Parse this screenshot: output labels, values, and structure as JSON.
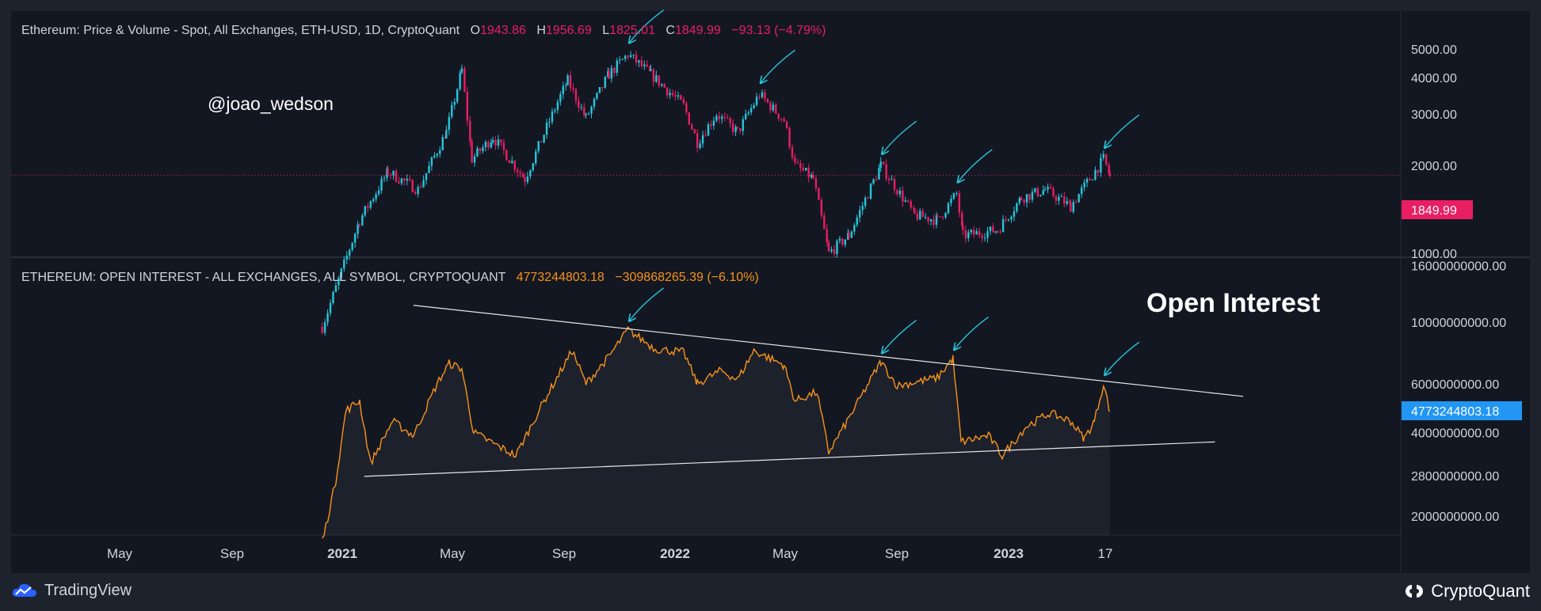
{
  "colors": {
    "background": "#131722",
    "frame": "#1e222d",
    "up": "#26c6da",
    "down": "#e91e63",
    "oi_line": "#f7931a",
    "arrow": "#26c6da",
    "price_badge": "#e91e63",
    "oi_badge": "#2196f3",
    "axis_text": "#d1d4dc"
  },
  "price_pane": {
    "legend": {
      "title": "Ethereum: Price & Volume - Spot, All Exchanges, ETH-USD, 1D, CryptoQuant",
      "o_label": "O",
      "o_value": "1943.86",
      "h_label": "H",
      "h_value": "1956.69",
      "l_label": "L",
      "l_value": "1825.01",
      "c_label": "C",
      "c_value": "1849.99",
      "change": "−93.13 (−4.79%)"
    },
    "watermark": "@joao_wedson",
    "last_price_label": "1849.99"
  },
  "oi_pane": {
    "legend": {
      "title": "ETHEREUM: OPEN INTEREST - ALL EXCHANGES, ALL SYMBOL, CRYPTOQUANT",
      "value": "4773244803.18",
      "change": "−309868265.39 (−6.10%)"
    },
    "annotation": "Open Interest",
    "last_value_label": "4773244803.18"
  },
  "footer": {
    "tradingview": "TradingView",
    "cryptoquant": "CryptoQuant",
    "tv_icon": "tradingview-cloud-icon",
    "cq_icon": "cryptoquant-logo-icon"
  },
  "chart_data": [
    {
      "type": "candlestick",
      "scale": "log",
      "ylim": [
        1000,
        5500
      ],
      "y_ticks": [
        "1000.00",
        "2000.00",
        "3000.00",
        "4000.00",
        "5000.00"
      ],
      "x_ticks": [
        "May",
        "Sep",
        "2021",
        "May",
        "Sep",
        "2022",
        "May",
        "Sep",
        "2023",
        "17"
      ],
      "bold_x_ticks": [
        "2021",
        "2022",
        "2023"
      ],
      "last_close": 1849.99,
      "anchors": [
        {
          "x": "2020-12-10",
          "y": 560
        },
        {
          "x": "2021-01-20",
          "y": 1300
        },
        {
          "x": "2021-02-20",
          "y": 1900
        },
        {
          "x": "2021-03-25",
          "y": 1650
        },
        {
          "x": "2021-04-25",
          "y": 2600
        },
        {
          "x": "2021-05-12",
          "y": 4250
        },
        {
          "x": "2021-05-23",
          "y": 2100
        },
        {
          "x": "2021-06-15",
          "y": 2500
        },
        {
          "x": "2021-07-20",
          "y": 1800
        },
        {
          "x": "2021-08-25",
          "y": 3300
        },
        {
          "x": "2021-09-05",
          "y": 3900
        },
        {
          "x": "2021-09-25",
          "y": 2900
        },
        {
          "x": "2021-10-20",
          "y": 4100
        },
        {
          "x": "2021-11-10",
          "y": 4800
        },
        {
          "x": "2021-12-05",
          "y": 4100
        },
        {
          "x": "2022-01-10",
          "y": 3200
        },
        {
          "x": "2022-01-25",
          "y": 2400
        },
        {
          "x": "2022-02-15",
          "y": 3000
        },
        {
          "x": "2022-03-10",
          "y": 2600
        },
        {
          "x": "2022-04-03",
          "y": 3500
        },
        {
          "x": "2022-04-30",
          "y": 2850
        },
        {
          "x": "2022-05-12",
          "y": 2000
        },
        {
          "x": "2022-06-01",
          "y": 1800
        },
        {
          "x": "2022-06-18",
          "y": 1000
        },
        {
          "x": "2022-07-10",
          "y": 1150
        },
        {
          "x": "2022-08-14",
          "y": 2000
        },
        {
          "x": "2022-09-20",
          "y": 1350
        },
        {
          "x": "2022-10-15",
          "y": 1300
        },
        {
          "x": "2022-11-05",
          "y": 1600
        },
        {
          "x": "2022-11-12",
          "y": 1150
        },
        {
          "x": "2022-12-20",
          "y": 1200
        },
        {
          "x": "2023-01-15",
          "y": 1550
        },
        {
          "x": "2023-02-10",
          "y": 1650
        },
        {
          "x": "2023-03-10",
          "y": 1450
        },
        {
          "x": "2023-04-15",
          "y": 2100
        },
        {
          "x": "2023-04-22",
          "y": 1849.99
        }
      ],
      "arrows_at": [
        "2021-11-10",
        "2022-04-03",
        "2022-08-14",
        "2022-11-05",
        "2023-04-15"
      ]
    },
    {
      "type": "line",
      "ylim": [
        1800000000,
        16000000000
      ],
      "y_ticks": [
        "2000000000.00",
        "2800000000.00",
        "4000000000.00",
        "6000000000.00",
        "10000000000.00",
        "16000000000.00"
      ],
      "last_value": 4773244803.18,
      "anchors": [
        {
          "x": "2020-12-10",
          "y": 1600000000
        },
        {
          "x": "2020-12-25",
          "y": 2700000000
        },
        {
          "x": "2021-01-05",
          "y": 4800000000
        },
        {
          "x": "2021-01-20",
          "y": 5200000000
        },
        {
          "x": "2021-02-01",
          "y": 3100000000
        },
        {
          "x": "2021-02-25",
          "y": 4400000000
        },
        {
          "x": "2021-03-20",
          "y": 3900000000
        },
        {
          "x": "2021-04-15",
          "y": 6000000000
        },
        {
          "x": "2021-04-28",
          "y": 7100000000
        },
        {
          "x": "2021-05-12",
          "y": 6800000000
        },
        {
          "x": "2021-05-25",
          "y": 4000000000
        },
        {
          "x": "2021-07-10",
          "y": 3300000000
        },
        {
          "x": "2021-08-10",
          "y": 5200000000
        },
        {
          "x": "2021-09-01",
          "y": 7000000000
        },
        {
          "x": "2021-09-10",
          "y": 7900000000
        },
        {
          "x": "2021-09-25",
          "y": 6000000000
        },
        {
          "x": "2021-10-20",
          "y": 7500000000
        },
        {
          "x": "2021-11-10",
          "y": 9400000000
        },
        {
          "x": "2021-12-10",
          "y": 8000000000
        },
        {
          "x": "2022-01-10",
          "y": 7800000000
        },
        {
          "x": "2022-01-25",
          "y": 6000000000
        },
        {
          "x": "2022-02-20",
          "y": 6700000000
        },
        {
          "x": "2022-03-10",
          "y": 6200000000
        },
        {
          "x": "2022-03-28",
          "y": 7900000000
        },
        {
          "x": "2022-04-30",
          "y": 7000000000
        },
        {
          "x": "2022-05-12",
          "y": 5200000000
        },
        {
          "x": "2022-06-05",
          "y": 5600000000
        },
        {
          "x": "2022-06-18",
          "y": 3400000000
        },
        {
          "x": "2022-07-10",
          "y": 4500000000
        },
        {
          "x": "2022-08-14",
          "y": 7200000000
        },
        {
          "x": "2022-09-01",
          "y": 5900000000
        },
        {
          "x": "2022-10-15",
          "y": 6300000000
        },
        {
          "x": "2022-11-01",
          "y": 7400000000
        },
        {
          "x": "2022-11-10",
          "y": 3700000000
        },
        {
          "x": "2022-12-10",
          "y": 3900000000
        },
        {
          "x": "2022-12-25",
          "y": 3300000000
        },
        {
          "x": "2023-01-20",
          "y": 4200000000
        },
        {
          "x": "2023-02-15",
          "y": 4700000000
        },
        {
          "x": "2023-03-10",
          "y": 4400000000
        },
        {
          "x": "2023-03-25",
          "y": 3800000000
        },
        {
          "x": "2023-04-05",
          "y": 4400000000
        },
        {
          "x": "2023-04-15",
          "y": 6000000000
        },
        {
          "x": "2023-04-22",
          "y": 4773244803.18
        }
      ],
      "trendlines": [
        {
          "from": {
            "x": "2021-03-20",
            "y": 11500000000
          },
          "to": {
            "x": "2023-09-15",
            "y": 5400000000
          }
        },
        {
          "from": {
            "x": "2021-01-25",
            "y": 2780000000
          },
          "to": {
            "x": "2023-08-15",
            "y": 3700000000
          }
        }
      ],
      "arrows_at": [
        "2021-11-10",
        "2022-08-14",
        "2022-11-01",
        "2023-04-15"
      ]
    }
  ]
}
